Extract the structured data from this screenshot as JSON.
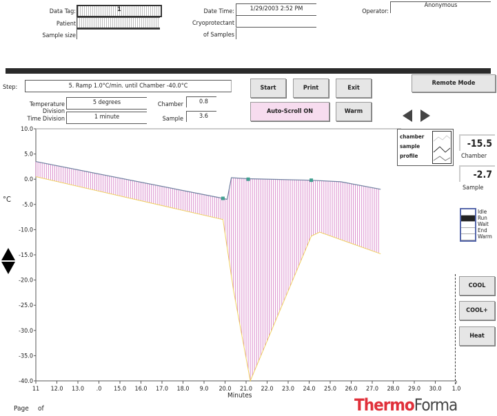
{
  "header": {
    "data_tag_label": "Data Tag:",
    "data_tag_value": "1",
    "patient_label": "Patient",
    "sample_size_label": "Sample size",
    "date_time_label": "Date  Time:",
    "date_time_value": "1/29/2003  2:52 PM",
    "cryoprotectant_label": "Cryoprotectant",
    "of_samples_label": "of Samples",
    "operator_label": "Operator:",
    "operator_value": "Anonymous"
  },
  "controls": {
    "step_label": "Step:",
    "step_value": "5.  Ramp 1.0°C/min. until Chamber   -40.0°C",
    "temp_div_label": "Temperature Division",
    "temp_div_value": "5 degrees",
    "time_div_label": "Time Division",
    "time_div_value": "1 minute",
    "chamber_label": "Chamber",
    "chamber_value": "0.8",
    "sample_label": "Sample",
    "sample_value": "3.6",
    "start": "Start",
    "print": "Print",
    "exit": "Exit",
    "remote": "Remote Mode",
    "autoscroll": "Auto-Scroll ON",
    "warm": "Warm"
  },
  "right_panel": {
    "chamber_reading": "-15.5",
    "chamber_label": "Chamber",
    "sample_reading": "-2.7",
    "sample_label": "Sample",
    "status_items": [
      "Idle",
      "Run",
      "Wait",
      "End",
      "Warm"
    ],
    "active_status": "Run",
    "cool": "COOL",
    "cool_plus": "COOL+",
    "heat": "Heat"
  },
  "footer": {
    "page_label": "Page",
    "of_label": "of",
    "brand_thermo": "Thermo",
    "brand_forma": "Forma",
    "brand_color": "#e0303a"
  },
  "colors": {
    "hatch": "#d070c0",
    "upper_line": "#7080a0",
    "lower_line": "#f0d060",
    "marker": "#40a090",
    "autoscroll_bg": "#f7dcef"
  },
  "chart_data": {
    "type": "line",
    "ylabel": "°C",
    "xlabel": "Minutes",
    "ylim": [
      -40,
      10
    ],
    "xlim": [
      11,
      31
    ],
    "y_ticks": [
      "10.0",
      "5.0",
      "0.0",
      "-5.0",
      "-10.0",
      "-15.0",
      "-20.0",
      "-25.0",
      "-30.0",
      "-35.0",
      "-40.0"
    ],
    "x_ticks": [
      "11",
      "12.0",
      "13.0",
      ".0",
      "15.0",
      "16.0",
      "17.0",
      "18.0",
      "9.0",
      "20.0",
      "21.0",
      "22.0",
      "23.0",
      "24.0",
      "25.0",
      "26.0",
      "27.0",
      "28.0",
      "29.0",
      "30.0",
      "1.0"
    ],
    "legend": [
      "chamber",
      "sample",
      "profile"
    ],
    "legend_position": "top-right",
    "series": [
      {
        "values": [
          [
            11,
            3.5
          ],
          [
            19.9,
            -3.8
          ],
          [
            20.1,
            -4.0
          ],
          [
            20.3,
            0.3
          ],
          [
            21.1,
            0.1
          ],
          [
            24.1,
            -0.2
          ],
          [
            25.5,
            -0.5
          ],
          [
            27.4,
            -2.0
          ]
        ]
      },
      {
        "values": [
          [
            11,
            0.5
          ],
          [
            19.9,
            -8.0
          ],
          [
            20.4,
            -22
          ],
          [
            21.2,
            -40
          ],
          [
            24.1,
            -11.3
          ],
          [
            24.5,
            -10.5
          ],
          [
            27.4,
            -14.8
          ]
        ]
      }
    ],
    "markers": [
      [
        19.9,
        -3.8
      ],
      [
        21.1,
        0.0
      ],
      [
        24.1,
        -0.2
      ]
    ]
  }
}
